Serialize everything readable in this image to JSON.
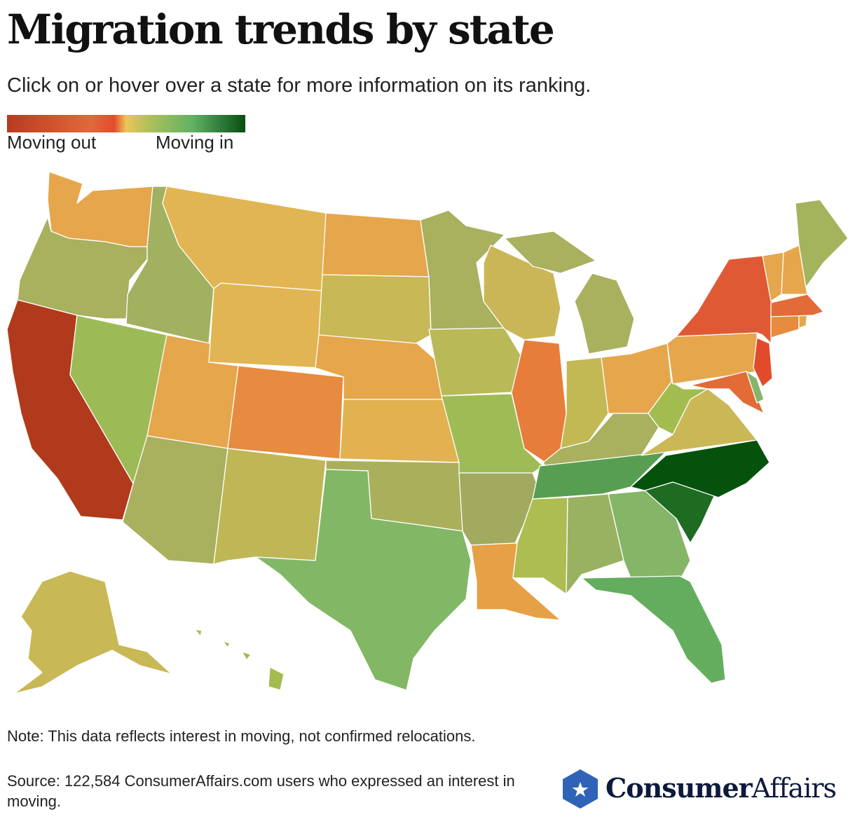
{
  "header": {
    "title": "Migration trends by state",
    "subtitle": "Click on or hover over a state for more information on its ranking."
  },
  "legend": {
    "low_label": "Moving out",
    "high_label": "Moving in",
    "colors": [
      "#b83b22",
      "#e44c2c",
      "#edc55a",
      "#5fb263",
      "#0a4d0f"
    ]
  },
  "map": {
    "color_scale_meaning": "red = moving out, green = moving in",
    "states": [
      {
        "code": "WA",
        "color": "#e6a64b"
      },
      {
        "code": "OR",
        "color": "#a9b05e"
      },
      {
        "code": "CA",
        "color": "#b03a1b"
      },
      {
        "code": "ID",
        "color": "#a1b160"
      },
      {
        "code": "NV",
        "color": "#9cbb56"
      },
      {
        "code": "MT",
        "color": "#e1b553"
      },
      {
        "code": "WY",
        "color": "#e1b553"
      },
      {
        "code": "UT",
        "color": "#e6a64b"
      },
      {
        "code": "AZ",
        "color": "#a9b05e"
      },
      {
        "code": "CO",
        "color": "#e68b40"
      },
      {
        "code": "NM",
        "color": "#bfb755"
      },
      {
        "code": "ND",
        "color": "#e6a64b"
      },
      {
        "code": "SD",
        "color": "#c8b856"
      },
      {
        "code": "NE",
        "color": "#e6a64b"
      },
      {
        "code": "KS",
        "color": "#e2b251"
      },
      {
        "code": "OK",
        "color": "#aaaf5c"
      },
      {
        "code": "TX",
        "color": "#82b766"
      },
      {
        "code": "MN",
        "color": "#a9b05e"
      },
      {
        "code": "IA",
        "color": "#b9ba57"
      },
      {
        "code": "MO",
        "color": "#9fbb55"
      },
      {
        "code": "AR",
        "color": "#a1aa5e"
      },
      {
        "code": "LA",
        "color": "#e6a046"
      },
      {
        "code": "WI",
        "color": "#cbb657"
      },
      {
        "code": "IL",
        "color": "#e77d3a"
      },
      {
        "code": "MI",
        "color": "#a9b05e"
      },
      {
        "code": "IN",
        "color": "#c2b955"
      },
      {
        "code": "OH",
        "color": "#e6a64b"
      },
      {
        "code": "KY",
        "color": "#a9b05e"
      },
      {
        "code": "TN",
        "color": "#579e52"
      },
      {
        "code": "MS",
        "color": "#aebd52"
      },
      {
        "code": "AL",
        "color": "#99b261"
      },
      {
        "code": "GA",
        "color": "#85b566"
      },
      {
        "code": "FL",
        "color": "#64ad5e"
      },
      {
        "code": "SC",
        "color": "#1e6b22"
      },
      {
        "code": "NC",
        "color": "#04520c"
      },
      {
        "code": "VA",
        "color": "#cab856"
      },
      {
        "code": "WV",
        "color": "#a3bc4f"
      },
      {
        "code": "PA",
        "color": "#e6a64b"
      },
      {
        "code": "NY",
        "color": "#df5934"
      },
      {
        "code": "NJ",
        "color": "#e24a2c"
      },
      {
        "code": "MD",
        "color": "#e26b37"
      },
      {
        "code": "DE",
        "color": "#86b56a"
      },
      {
        "code": "CT",
        "color": "#e68b40"
      },
      {
        "code": "RI",
        "color": "#e6a64b"
      },
      {
        "code": "MA",
        "color": "#e26b37"
      },
      {
        "code": "VT",
        "color": "#e6a64b"
      },
      {
        "code": "NH",
        "color": "#e6a64b"
      },
      {
        "code": "ME",
        "color": "#a3b45c"
      },
      {
        "code": "AK",
        "color": "#c8b856"
      },
      {
        "code": "HI",
        "color": "#a3bc4f"
      }
    ]
  },
  "footer": {
    "note": "Note: This data reflects interest in moving, not confirmed relocations.",
    "source": "Source: 122,584 ConsumerAffairs.com users who expressed an interest in moving."
  },
  "logo": {
    "brand_bold": "Consumer",
    "brand_regular": "Affairs",
    "badge_color": "#2f63b8"
  }
}
